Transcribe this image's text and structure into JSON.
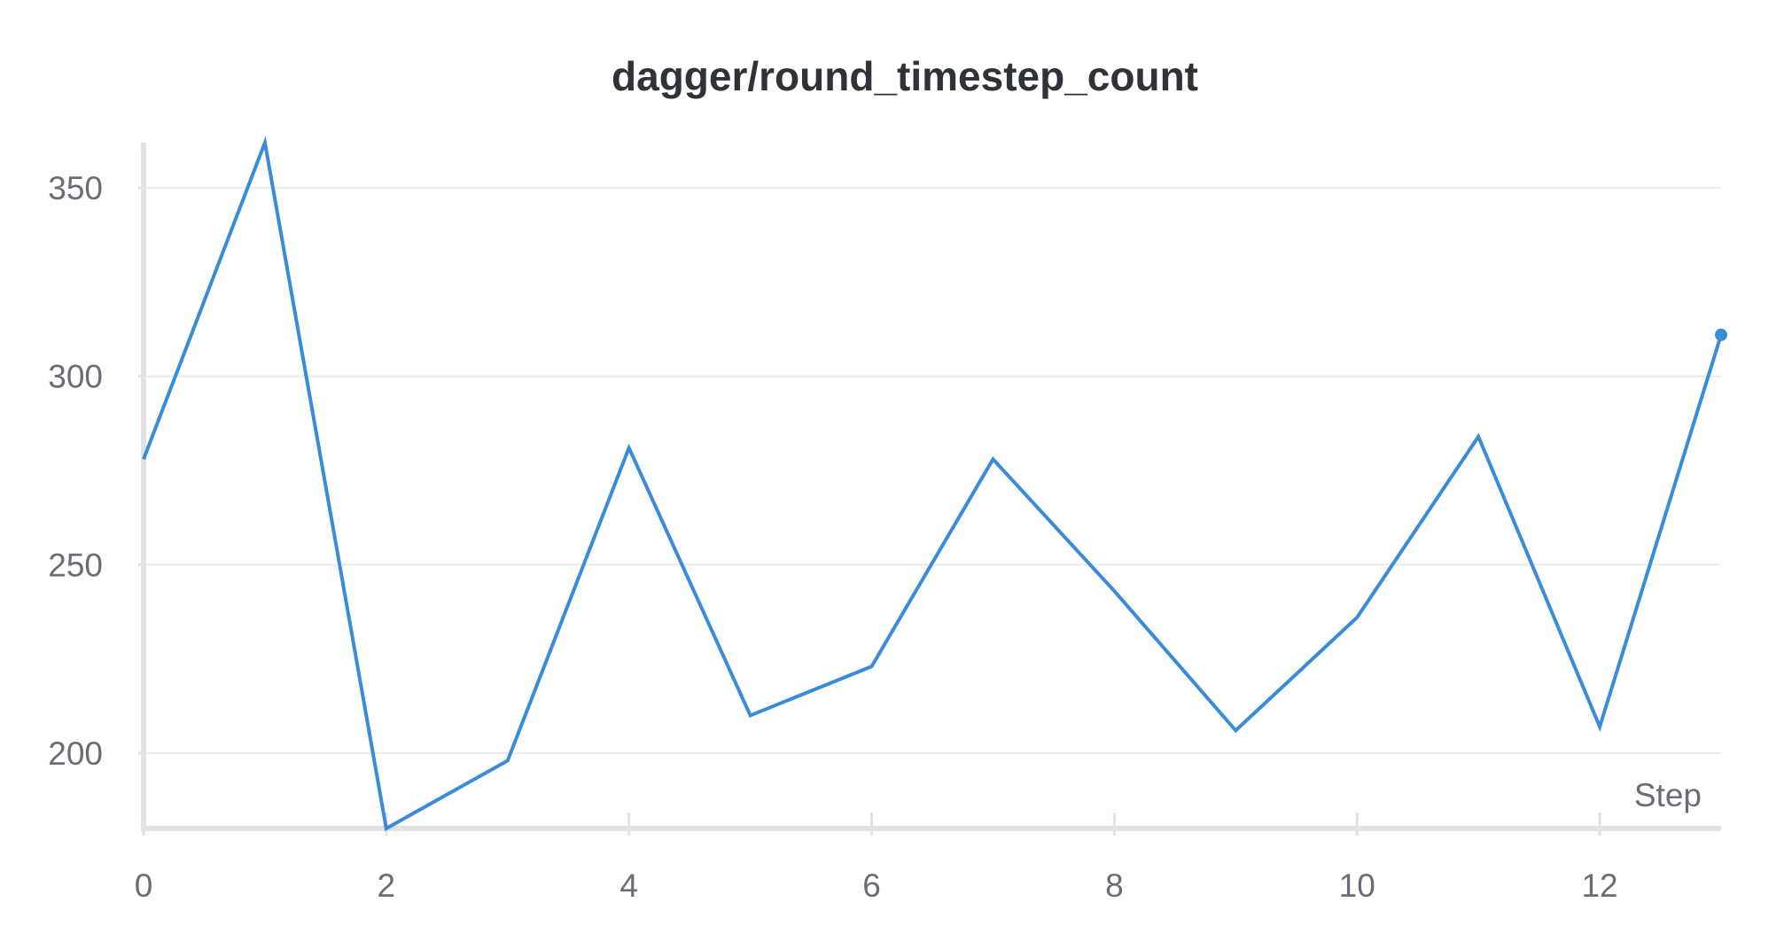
{
  "chart_data": {
    "type": "line",
    "title": "dagger/round_timestep_count",
    "xlabel": "Step",
    "ylabel": "",
    "x": [
      0,
      1,
      2,
      3,
      4,
      5,
      6,
      7,
      8,
      9,
      10,
      11,
      12,
      13
    ],
    "series": [
      {
        "values": [
          278,
          362,
          180,
          198,
          281,
          210,
          223,
          278,
          243,
          206,
          236,
          284,
          207,
          311
        ],
        "color": "#3a8bd8"
      }
    ],
    "xlim": [
      0,
      13
    ],
    "ylim": [
      180,
      362
    ],
    "xticks": [
      0,
      2,
      4,
      6,
      8,
      10,
      12
    ],
    "yticks": [
      200,
      250,
      300,
      350
    ],
    "grid": "horizontal",
    "last_point_marker": true
  },
  "colors": {
    "line": "#3a8bd8",
    "text": "#6b6d75",
    "title": "#2f3237",
    "grid": "#ebebed",
    "axis": "#e2e2e4"
  }
}
